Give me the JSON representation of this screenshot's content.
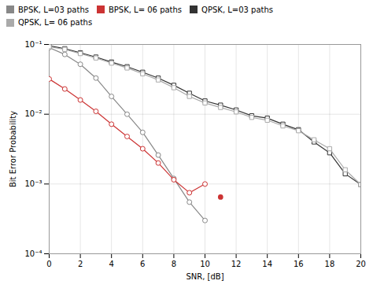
{
  "chart_data": {
    "type": "line",
    "xlabel": "SNR, [dB]",
    "ylabel": "Bit Error Probability",
    "x": [
      0,
      1,
      2,
      3,
      4,
      5,
      6,
      7,
      8,
      9,
      10,
      11,
      12,
      13,
      14,
      15,
      16,
      17,
      18,
      19,
      20
    ],
    "series": [
      {
        "name": "BPSK, L=03 paths",
        "color": "#888888",
        "marker": "circle",
        "line_style": "solid",
        "values": [
          0.09,
          0.072,
          0.052,
          0.033,
          0.018,
          0.01,
          0.0055,
          0.0026,
          0.0012,
          0.00055,
          0.0003,
          null,
          null,
          null,
          null,
          null,
          null,
          null,
          null,
          null,
          null
        ]
      },
      {
        "name": "BPSK, L= 06 paths",
        "color": "#cc3333",
        "marker": "circle",
        "line_style": "solid",
        "values": [
          0.032,
          0.023,
          0.016,
          0.011,
          0.0072,
          0.0048,
          0.0032,
          0.002,
          0.00115,
          0.00075,
          0.001,
          null,
          null,
          null,
          null,
          null,
          null,
          null,
          null,
          null,
          null
        ]
      },
      {
        "name": "QPSK, L=03 paths",
        "color": "#333333",
        "marker": "square",
        "line_style": "solid",
        "values": [
          0.096,
          0.087,
          0.076,
          0.066,
          0.056,
          0.048,
          0.04,
          0.033,
          0.026,
          0.02,
          0.0155,
          0.0135,
          0.0115,
          0.0095,
          0.0088,
          0.0072,
          0.006,
          0.004,
          0.0028,
          0.0014,
          0.00098
        ]
      },
      {
        "name": "QPSK, L= 06 paths",
        "color": "#aaaaaa",
        "marker": "square",
        "line_style": "solid",
        "values": [
          0.093,
          0.085,
          0.074,
          0.064,
          0.054,
          0.046,
          0.038,
          0.031,
          0.024,
          0.018,
          0.0145,
          0.0125,
          0.0108,
          0.009,
          0.0082,
          0.0068,
          0.0058,
          0.0043,
          0.0032,
          0.0016,
          0.00098
        ]
      },
      {
        "type": "scatter",
        "color": "#cc3333",
        "marker": "circle",
        "values": [
          null,
          null,
          null,
          null,
          null,
          null,
          null,
          null,
          null,
          null,
          null,
          0.00065,
          null,
          null,
          null,
          null,
          null,
          null,
          null,
          null,
          null
        ]
      }
    ],
    "xlim": [
      0,
      20
    ],
    "xticks": [
      0,
      2,
      4,
      6,
      8,
      10,
      12,
      14,
      16,
      18,
      20
    ],
    "ylim": [
      0.0001,
      0.1
    ],
    "yticks": [
      {
        "value": 0.0001,
        "label": "10⁻⁴"
      },
      {
        "value": 0.001,
        "label": "10⁻³"
      },
      {
        "value": 0.01,
        "label": "10⁻²"
      },
      {
        "value": 0.1,
        "label": "10⁻¹"
      }
    ],
    "log": "y",
    "grid": true,
    "legend": "upper right"
  }
}
